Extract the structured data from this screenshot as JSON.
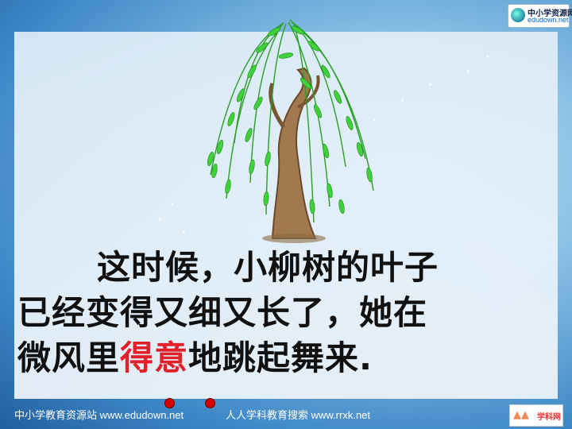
{
  "passage": {
    "line1": "这时候，小柳树的叶子",
    "line2": "已经变得又细又长了，她在",
    "line3_before": "微风里",
    "line3_highlight": "得意",
    "line3_after": "地跳起舞来."
  },
  "footer": {
    "left": "中小学教育资源站 www.edudown.net",
    "right": "人人学科教育搜索 www.rrxk.net"
  },
  "logos": {
    "top_right_title": "中小学资源网",
    "top_right_url": "edudown.net",
    "bottom_right_text": "学科网"
  },
  "colors": {
    "highlight": "#e2202a",
    "leaf": "#3fd13a",
    "trunk": "#a07a4e"
  }
}
